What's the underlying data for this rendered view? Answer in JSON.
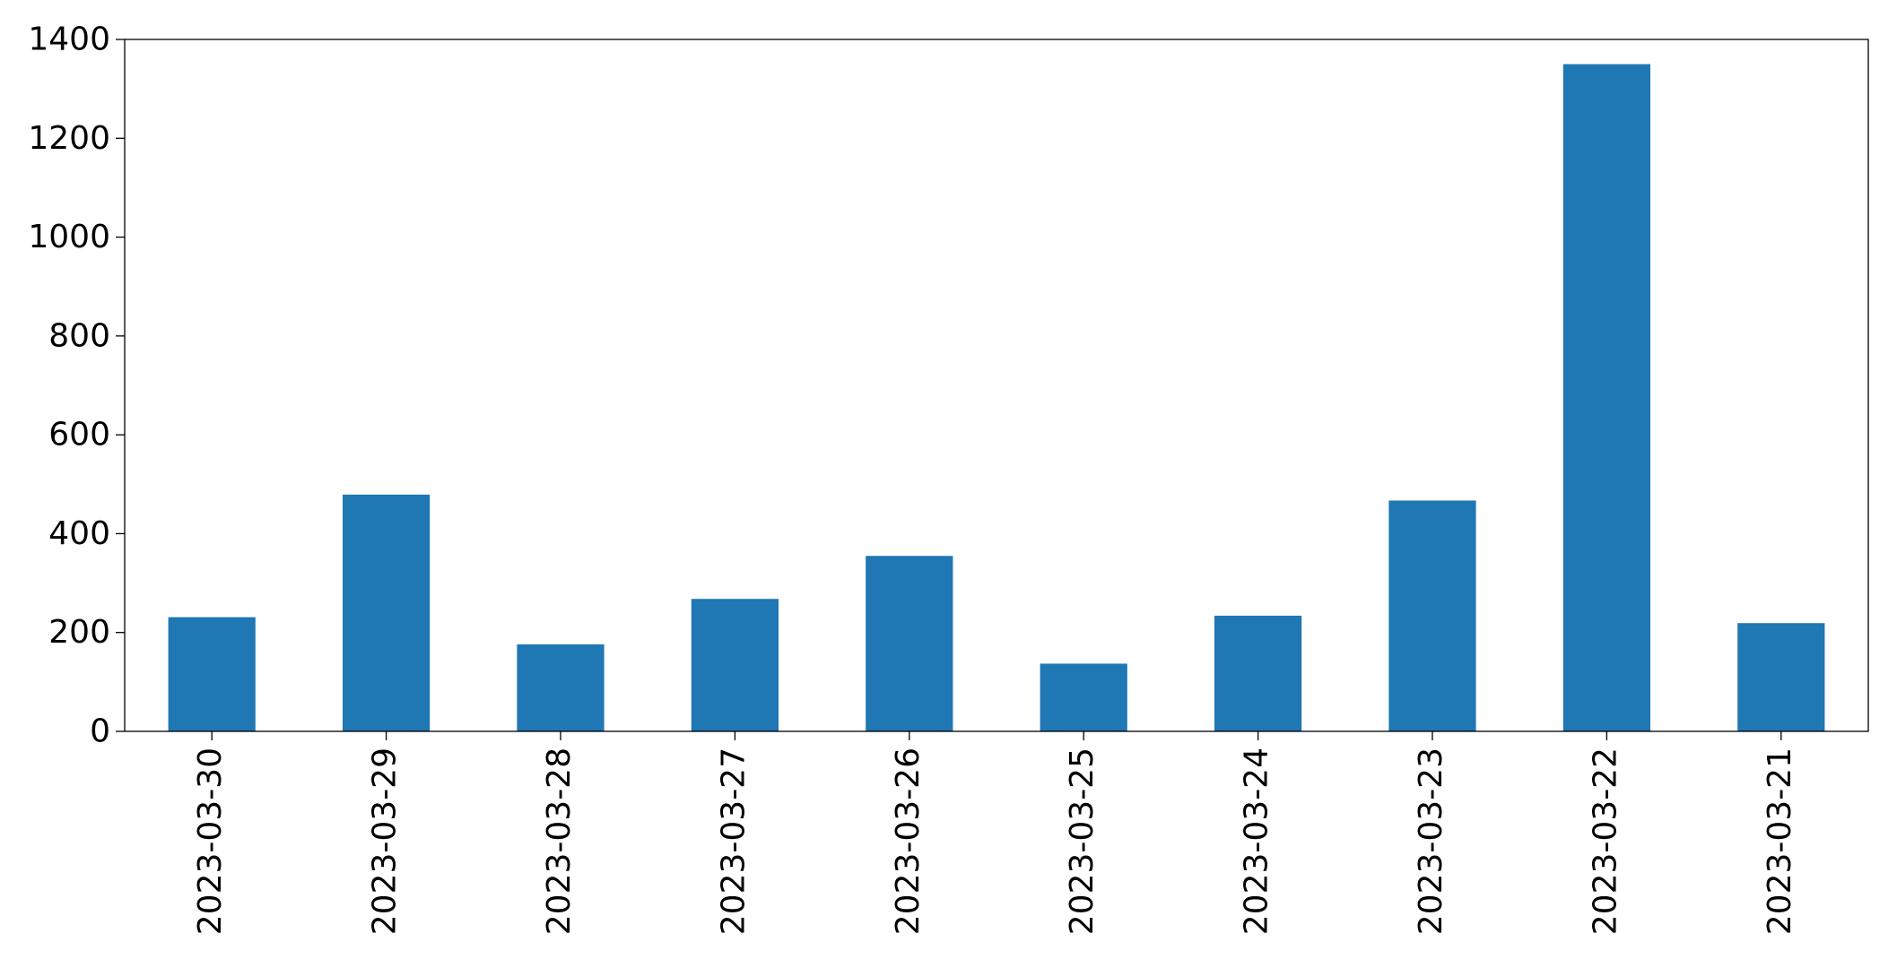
{
  "chart_data": {
    "type": "bar",
    "title": "",
    "xlabel": "",
    "ylabel": "",
    "categories": [
      "2023-03-30",
      "2023-03-29",
      "2023-03-28",
      "2023-03-27",
      "2023-03-26",
      "2023-03-25",
      "2023-03-24",
      "2023-03-23",
      "2023-03-22",
      "2023-03-21"
    ],
    "values": [
      231,
      479,
      176,
      268,
      355,
      137,
      234,
      467,
      1350,
      219
    ],
    "ylim": [
      0,
      1400
    ],
    "yticks": [
      0,
      200,
      400,
      600,
      800,
      1000,
      1200,
      1400
    ],
    "grid": false,
    "legend": "none",
    "bar_color": "#1f77b4"
  }
}
